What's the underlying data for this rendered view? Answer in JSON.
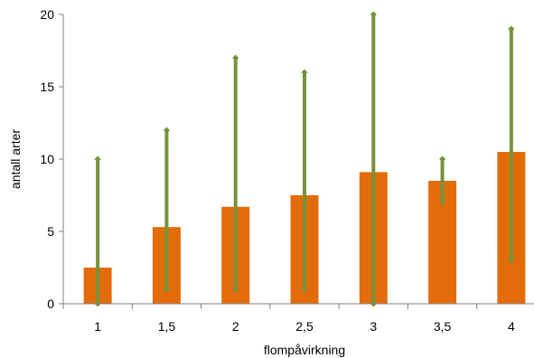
{
  "chart_data": {
    "type": "bar",
    "title": "",
    "xlabel": "flompåvirkning",
    "ylabel": "antall arter",
    "categories": [
      "1",
      "1,5",
      "2",
      "2,5",
      "3",
      "3,5",
      "4"
    ],
    "series": [
      {
        "values": [
          2.5,
          5.3,
          6.7,
          7.5,
          9.1,
          8.5,
          10.5
        ]
      }
    ],
    "range_min": [
      0,
      1,
      1,
      1,
      0,
      7,
      3
    ],
    "range_max": [
      10,
      12,
      17,
      16,
      20,
      10,
      19
    ],
    "ylim": [
      0,
      20
    ],
    "yticks": [
      0,
      5,
      10,
      15,
      20
    ],
    "grid": false,
    "colors": {
      "bar": "#e36c0a",
      "range": "#76923c",
      "axis": "#808080"
    }
  }
}
